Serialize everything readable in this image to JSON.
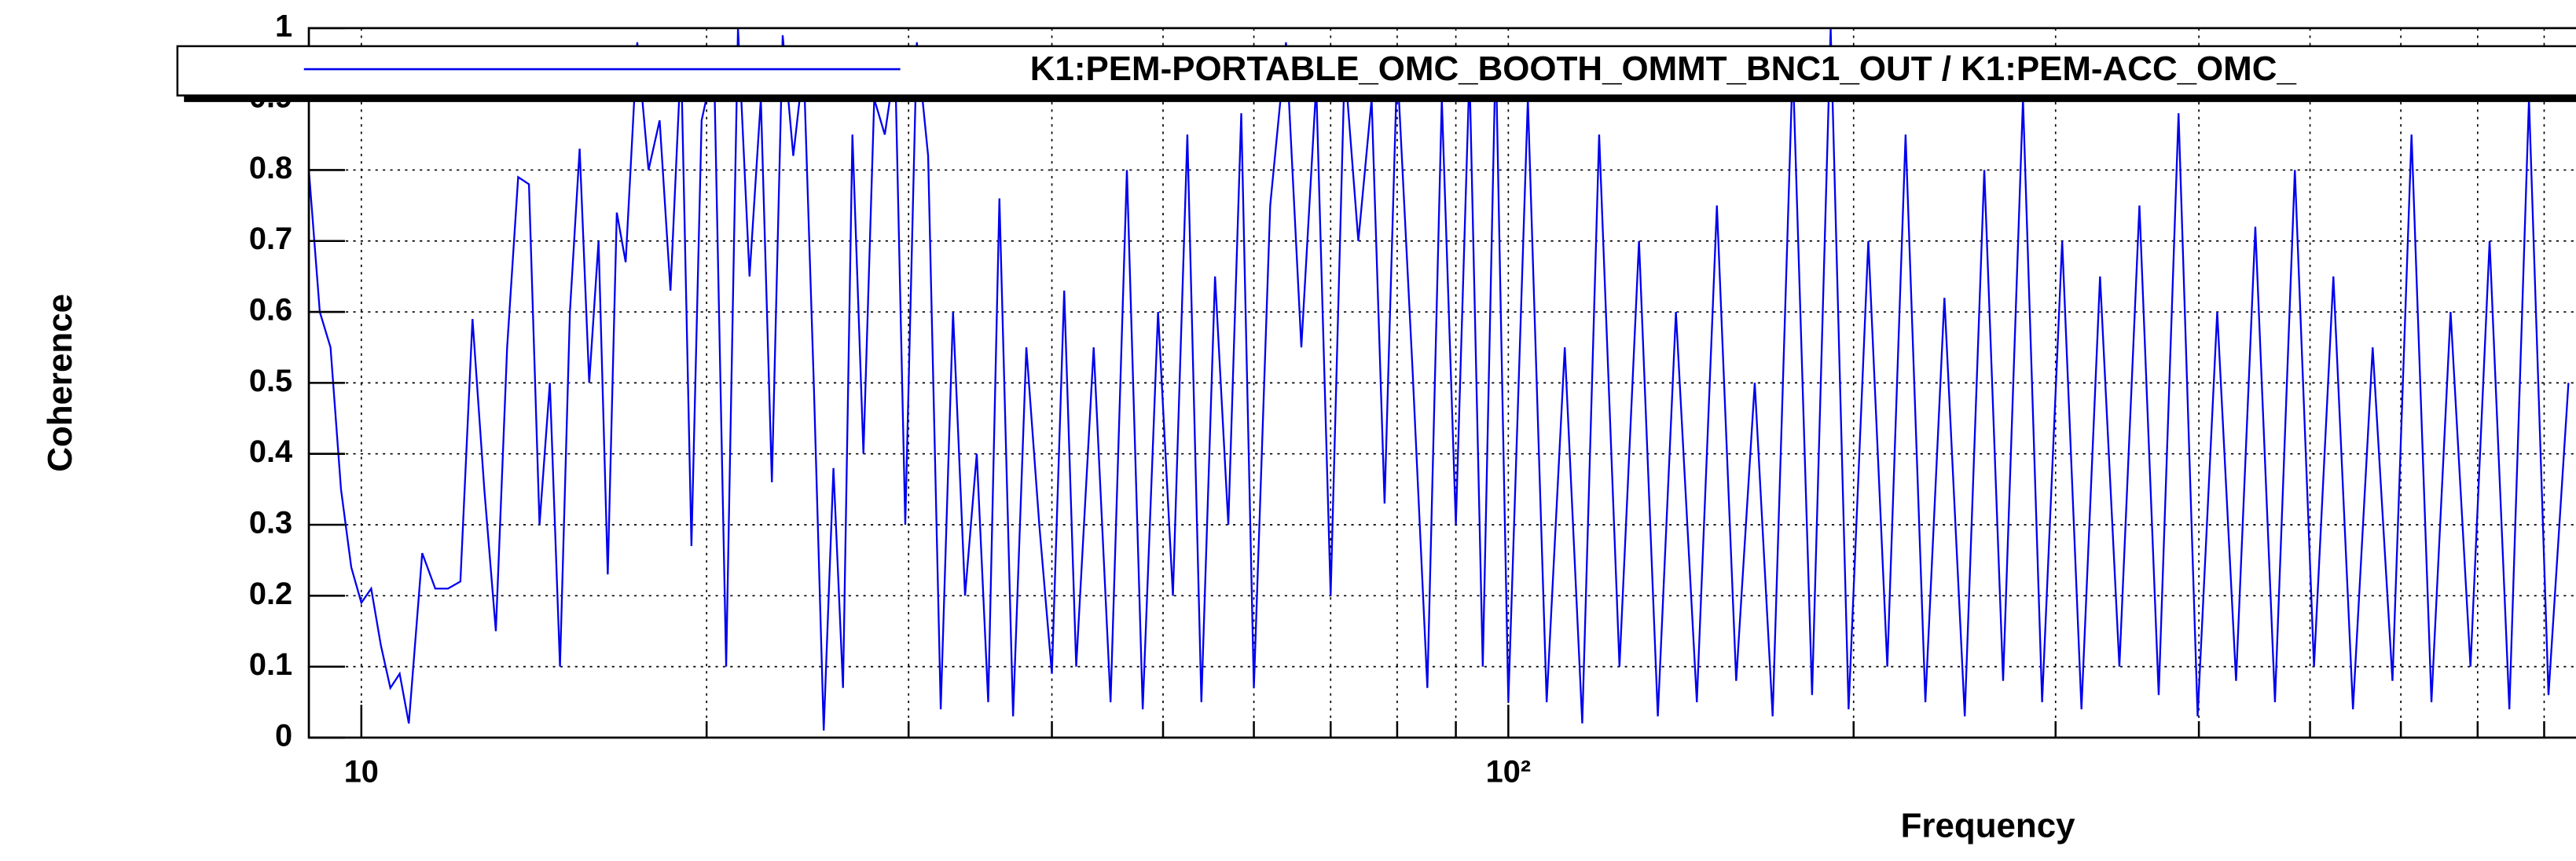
{
  "chart_data": {
    "type": "line",
    "xlabel": "Frequency",
    "ylabel": "Coherence",
    "log_x": true,
    "grid": true,
    "legend": "top",
    "xlim": [
      9,
      850
    ],
    "ylim": [
      0,
      1
    ],
    "xticks": [
      10,
      {
        "value": 100,
        "label": "10²"
      }
    ],
    "xminor": [
      20,
      30,
      40,
      50,
      60,
      70,
      80,
      90,
      200,
      300,
      400,
      500,
      600,
      700,
      800
    ],
    "yticks": [
      0,
      0.1,
      0.2,
      0.3,
      0.4,
      0.5,
      0.6,
      0.7,
      0.8,
      0.9,
      1
    ],
    "x": [
      9.0,
      9.2,
      9.4,
      9.6,
      9.8,
      10.0,
      10.2,
      10.4,
      10.6,
      10.8,
      11.0,
      11.3,
      11.6,
      11.9,
      12.2,
      12.5,
      12.8,
      13.1,
      13.4,
      13.7,
      14.0,
      14.3,
      14.6,
      14.9,
      15.2,
      15.5,
      15.8,
      16.1,
      16.4,
      16.7,
      17.0,
      17.4,
      17.8,
      18.2,
      18.6,
      19.0,
      19.4,
      19.8,
      20.3,
      20.8,
      21.3,
      21.8,
      22.3,
      22.8,
      23.3,
      23.8,
      24.3,
      24.8,
      25.3,
      25.8,
      26.3,
      26.8,
      27.4,
      28.0,
      28.6,
      29.2,
      29.8,
      30.5,
      31.2,
      32,
      32.8,
      33.6,
      34.4,
      35.2,
      36,
      37,
      38,
      39,
      40,
      41,
      42,
      43.5,
      45,
      46.5,
      48,
      49.5,
      51,
      52.5,
      54,
      55.5,
      57,
      58.5,
      60,
      62,
      64,
      66,
      68,
      70,
      72,
      74,
      76,
      78,
      80,
      82.5,
      85,
      87.5,
      90,
      92.5,
      95,
      97.5,
      100,
      104,
      108,
      112,
      116,
      120,
      125,
      130,
      135,
      140,
      146,
      152,
      158,
      164,
      170,
      177,
      184,
      191,
      198,
      206,
      214,
      222,
      231,
      240,
      250,
      260,
      270,
      281,
      292,
      304,
      316,
      328,
      341,
      355,
      369,
      384,
      399,
      415,
      431,
      448,
      466,
      485,
      504,
      524,
      545,
      567,
      590,
      613,
      638,
      663,
      690,
      717,
      746,
      776,
      807,
      840
    ],
    "series": [
      {
        "name": "K1:PEM-PORTABLE_OMC_BOOTH_OMMT_BNC1_OUT / K1:PEM-ACC_OMC_",
        "color": "#0000ee",
        "values": [
          0.8,
          0.6,
          0.55,
          0.35,
          0.24,
          0.19,
          0.21,
          0.13,
          0.07,
          0.09,
          0.02,
          0.26,
          0.21,
          0.21,
          0.22,
          0.59,
          0.35,
          0.15,
          0.55,
          0.79,
          0.78,
          0.3,
          0.5,
          0.1,
          0.6,
          0.83,
          0.5,
          0.7,
          0.23,
          0.74,
          0.67,
          0.98,
          0.8,
          0.87,
          0.63,
          0.96,
          0.27,
          0.87,
          0.95,
          0.1,
          1.0,
          0.65,
          0.9,
          0.36,
          0.99,
          0.82,
          0.95,
          0.5,
          0.01,
          0.38,
          0.07,
          0.85,
          0.4,
          0.9,
          0.85,
          0.95,
          0.3,
          0.98,
          0.82,
          0.04,
          0.6,
          0.2,
          0.4,
          0.05,
          0.76,
          0.03,
          0.55,
          0.3,
          0.09,
          0.63,
          0.1,
          0.55,
          0.05,
          0.8,
          0.04,
          0.6,
          0.2,
          0.85,
          0.05,
          0.65,
          0.3,
          0.88,
          0.07,
          0.75,
          0.98,
          0.55,
          0.92,
          0.2,
          0.95,
          0.7,
          0.9,
          0.33,
          0.95,
          0.52,
          0.07,
          0.9,
          0.3,
          0.94,
          0.1,
          0.97,
          0.05,
          0.9,
          0.05,
          0.55,
          0.02,
          0.85,
          0.1,
          0.7,
          0.03,
          0.6,
          0.05,
          0.75,
          0.08,
          0.5,
          0.03,
          0.95,
          0.06,
          1.0,
          0.04,
          0.7,
          0.1,
          0.85,
          0.05,
          0.62,
          0.03,
          0.8,
          0.08,
          0.9,
          0.05,
          0.7,
          0.04,
          0.65,
          0.1,
          0.75,
          0.06,
          0.88,
          0.03,
          0.6,
          0.08,
          0.72,
          0.05,
          0.8,
          0.1,
          0.65,
          0.04,
          0.55,
          0.08,
          0.85,
          0.05,
          0.6,
          0.1,
          0.7,
          0.04,
          0.9,
          0.06,
          0.5
        ]
      }
    ]
  }
}
